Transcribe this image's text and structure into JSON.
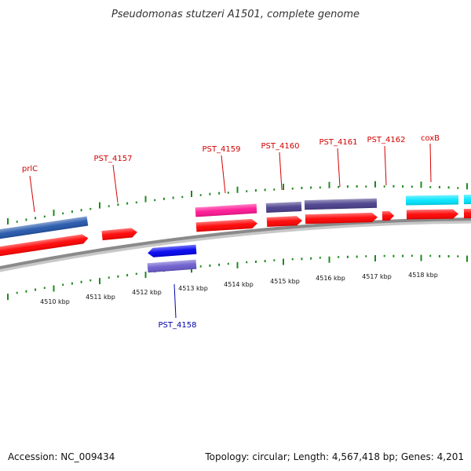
{
  "title": "Pseudomonas stutzeri A1501, complete genome",
  "footer": {
    "accession": "Accession: NC_009434",
    "summary": "Topology: circular; Length: 4,567,418 bp; Genes: 4,201"
  },
  "colors": {
    "backbone": "#8a8a8a",
    "tick": "#1f8a1f",
    "label_forward": "#d40000",
    "label_reverse": "#0000aa",
    "cds": "#ff0000",
    "gene_blue": "#2255aa",
    "gene_magenta": "#ff1493",
    "gene_slate": "#483d8b",
    "gene_cyan": "#00e5ff",
    "cds_reverse": "#0000ee",
    "gene_reverse": "#6a5acd"
  },
  "tick_labels": [
    "4510 kbp",
    "4511 kbp",
    "4512 kbp",
    "4513 kbp",
    "4514 kbp",
    "4515 kbp",
    "4516 kbp",
    "4517 kbp",
    "4518 kbp"
  ],
  "gene_labels": [
    {
      "id": "prlC",
      "label": "prlC",
      "strand": "forward"
    },
    {
      "id": "pst4157",
      "label": "PST_4157",
      "strand": "forward"
    },
    {
      "id": "pst4159",
      "label": "PST_4159",
      "strand": "forward"
    },
    {
      "id": "pst4160",
      "label": "PST_4160",
      "strand": "forward"
    },
    {
      "id": "pst4161",
      "label": "PST_4161",
      "strand": "forward"
    },
    {
      "id": "pst4162",
      "label": "PST_4162",
      "strand": "forward"
    },
    {
      "id": "coxB",
      "label": "coxB",
      "strand": "forward"
    },
    {
      "id": "pst4158",
      "label": "PST_4158",
      "strand": "reverse"
    }
  ]
}
